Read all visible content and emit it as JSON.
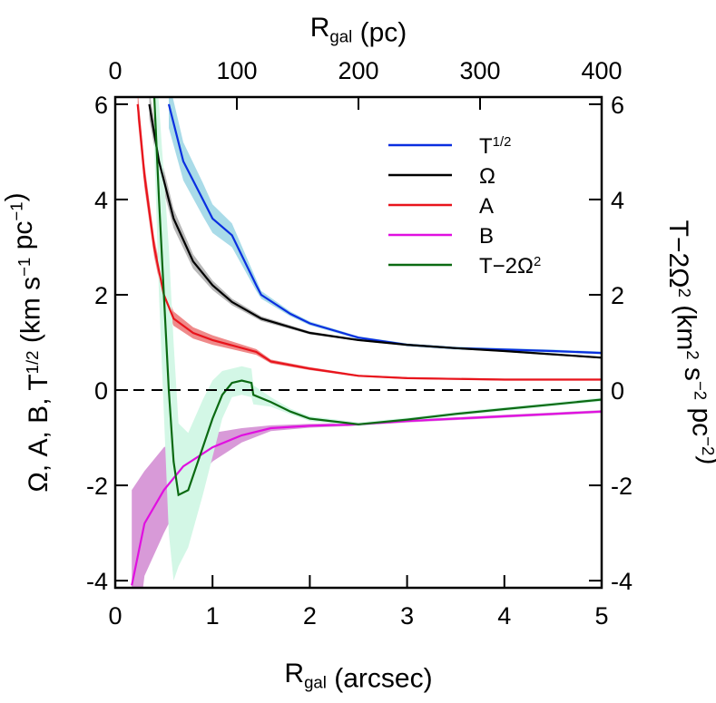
{
  "chart_data": {
    "type": "line",
    "x_label": [
      {
        "text": "R"
      },
      {
        "sub": "gal"
      },
      {
        "text": " (arcsec)"
      }
    ],
    "x2_label": [
      {
        "text": "R"
      },
      {
        "sub": "gal"
      },
      {
        "text": " (pc)"
      }
    ],
    "y_label": [
      {
        "text": "Ω, A, B, T"
      },
      {
        "sup": "1/2"
      },
      {
        "text": " (km s"
      },
      {
        "sup": "−1"
      },
      {
        "text": " pc"
      },
      {
        "sup": "−1"
      },
      {
        "text": ")"
      }
    ],
    "y2_label": [
      {
        "text": "T−2Ω"
      },
      {
        "sup": "2"
      },
      {
        "text": " (km"
      },
      {
        "sup": "2"
      },
      {
        "text": " s"
      },
      {
        "sup": "−2"
      },
      {
        "text": " pc"
      },
      {
        "sup": "−2"
      },
      {
        "text": ")"
      }
    ],
    "xlim": [
      0,
      5
    ],
    "xticks": [
      0,
      1,
      2,
      3,
      4,
      5
    ],
    "x2lim": [
      0,
      400
    ],
    "x2ticks": [
      0,
      100,
      200,
      300,
      400
    ],
    "ylim": [
      -4.15,
      6.15
    ],
    "yticks": [
      -4,
      -2,
      0,
      2,
      4,
      6
    ],
    "y2lim": [
      -4.15,
      6.15
    ],
    "y2ticks": [
      -4,
      -2,
      0,
      2,
      4,
      6
    ],
    "reference_line": 0,
    "legend": "upper right",
    "series": [
      {
        "name": [
          {
            "text": "T"
          },
          {
            "sup": "1/2"
          }
        ],
        "color": "#0a2ee0",
        "band_color": "#a9dbe8",
        "x": [
          0.55,
          0.7,
          0.9,
          1.0,
          1.2,
          1.45,
          1.5,
          1.8,
          2.0,
          2.5,
          3.0,
          3.5,
          4.0,
          4.5,
          5.0
        ],
        "values": [
          6.0,
          4.8,
          4.0,
          3.6,
          3.25,
          2.2,
          2.0,
          1.6,
          1.4,
          1.1,
          0.95,
          0.88,
          0.85,
          0.82,
          0.78
        ],
        "errors": [
          0.5,
          0.4,
          0.35,
          0.3,
          0.25,
          0.12,
          0.08,
          0.05,
          0.04,
          0.03,
          0.03,
          0.03,
          0.03,
          0.03,
          0.03
        ]
      },
      {
        "name": [
          {
            "text": "Ω"
          }
        ],
        "color": "#000000",
        "band_color": "#b8b8b8",
        "x": [
          0.35,
          0.45,
          0.6,
          0.8,
          1.0,
          1.2,
          1.5,
          2.0,
          2.5,
          3.0,
          3.5,
          4.0,
          4.5,
          5.0
        ],
        "values": [
          6.0,
          4.8,
          3.6,
          2.7,
          2.2,
          1.85,
          1.5,
          1.2,
          1.05,
          0.95,
          0.88,
          0.82,
          0.75,
          0.68
        ],
        "errors": [
          0.3,
          0.25,
          0.2,
          0.15,
          0.1,
          0.07,
          0.05,
          0.03,
          0.02,
          0.02,
          0.02,
          0.02,
          0.02,
          0.02
        ]
      },
      {
        "name": [
          {
            "text": "A"
          }
        ],
        "color": "#e8141c",
        "band_color": "#ef8a8a",
        "x": [
          0.23,
          0.3,
          0.4,
          0.5,
          0.6,
          0.8,
          1.0,
          1.45,
          1.6,
          2.0,
          2.5,
          3.0,
          4.0,
          5.0
        ],
        "values": [
          6.0,
          4.5,
          3.0,
          2.0,
          1.5,
          1.2,
          1.05,
          0.8,
          0.6,
          0.45,
          0.3,
          0.25,
          0.22,
          0.22
        ],
        "errors": [
          0.3,
          0.25,
          0.2,
          0.18,
          0.15,
          0.12,
          0.1,
          0.06,
          0.04,
          0.03,
          0.02,
          0.02,
          0.02,
          0.02
        ]
      },
      {
        "name": [
          {
            "text": "B"
          }
        ],
        "color": "#e010e0",
        "band_color": "#d89ad8",
        "x": [
          0.17,
          0.3,
          0.5,
          0.7,
          1.0,
          1.3,
          1.6,
          2.0,
          2.5,
          3.0,
          3.5,
          4.0,
          4.5,
          5.0
        ],
        "values": [
          -4.1,
          -2.8,
          -2.1,
          -1.6,
          -1.2,
          -0.95,
          -0.8,
          -0.75,
          -0.72,
          -0.65,
          -0.6,
          -0.55,
          -0.5,
          -0.45
        ],
        "errors": [
          2.0,
          1.1,
          0.9,
          0.6,
          0.3,
          0.15,
          0.06,
          0.04,
          0.03,
          0.03,
          0.03,
          0.03,
          0.03,
          0.03
        ]
      },
      {
        "name": [
          {
            "text": "T−2Ω"
          },
          {
            "sup": "2"
          }
        ],
        "color": "#0b6a12",
        "band_color": "#d3f7e6",
        "axis": "y2",
        "x": [
          0.4,
          0.45,
          0.5,
          0.55,
          0.6,
          0.65,
          0.75,
          0.9,
          1.0,
          1.1,
          1.2,
          1.3,
          1.4,
          1.42,
          1.6,
          1.8,
          2.0,
          2.5,
          3.0,
          3.5,
          4.0,
          4.5,
          5.0
        ],
        "values": [
          6.2,
          4.0,
          2.0,
          0.0,
          -1.5,
          -2.2,
          -2.1,
          -1.2,
          -0.6,
          -0.1,
          0.15,
          0.2,
          0.15,
          -0.1,
          -0.25,
          -0.45,
          -0.6,
          -0.72,
          -0.62,
          -0.5,
          -0.4,
          -0.3,
          -0.2
        ],
        "errors": [
          1.0,
          2.0,
          2.5,
          3.0,
          2.5,
          1.5,
          1.2,
          1.0,
          0.8,
          0.5,
          0.3,
          0.3,
          0.3,
          0.2,
          0.1,
          0.06,
          0.05,
          0.04,
          0.04,
          0.04,
          0.04,
          0.04,
          0.04
        ]
      }
    ]
  }
}
